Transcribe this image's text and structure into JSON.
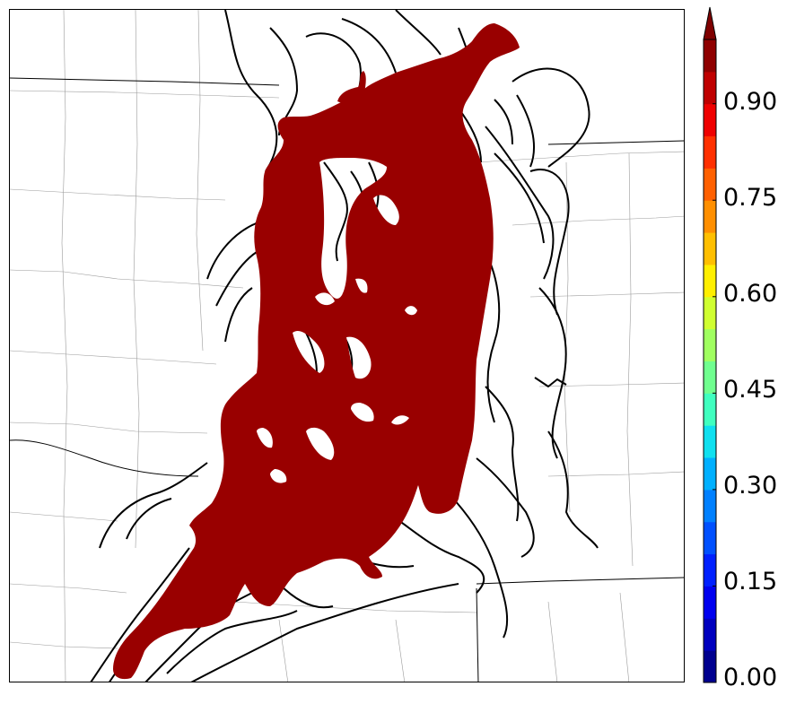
{
  "map": {
    "field_color": "#990000",
    "contour_color": "#000000",
    "boundary_color": "#888888"
  },
  "colorbar": {
    "ticks": [
      "0.00",
      "0.15",
      "0.30",
      "0.45",
      "0.60",
      "0.75",
      "0.90"
    ],
    "colors": [
      "#00008f",
      "#0000bf",
      "#0000ef",
      "#0020ff",
      "#0050ff",
      "#0080ff",
      "#00b0ff",
      "#10e0ef",
      "#40ffbf",
      "#70ff8f",
      "#a0ff60",
      "#d0ff30",
      "#ffef00",
      "#ffbf00",
      "#ff8f00",
      "#ff6000",
      "#ff3000",
      "#ef0000",
      "#bf0000",
      "#8f0000"
    ],
    "extend_color": "#7f0000",
    "min": 0.0,
    "max": 1.0
  }
}
